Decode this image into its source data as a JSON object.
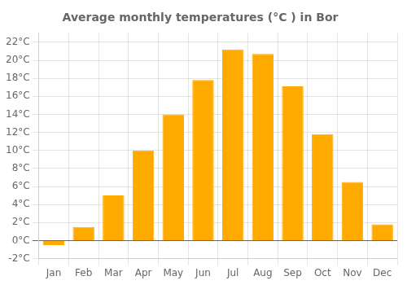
{
  "chart_data": {
    "type": "bar",
    "title": "Average monthly temperatures (°C ) in Bor",
    "categories": [
      "Jan",
      "Feb",
      "Mar",
      "Apr",
      "May",
      "Jun",
      "Jul",
      "Aug",
      "Sep",
      "Oct",
      "Nov",
      "Dec"
    ],
    "values": [
      -0.5,
      1.5,
      5.0,
      10.0,
      14.0,
      17.8,
      21.2,
      20.7,
      17.1,
      11.8,
      6.5,
      1.8
    ],
    "color": "#FFAA00",
    "ylim": [
      -2,
      23
    ],
    "yticks": [
      {
        "value": -2,
        "label": "-2°C"
      },
      {
        "value": 0,
        "label": "0°C"
      },
      {
        "value": 2,
        "label": "2°C"
      },
      {
        "value": 4,
        "label": "4°C"
      },
      {
        "value": 6,
        "label": "6°C"
      },
      {
        "value": 8,
        "label": "8°C"
      },
      {
        "value": 10,
        "label": "10°C"
      },
      {
        "value": 12,
        "label": "12°C"
      },
      {
        "value": 14,
        "label": "14°C"
      },
      {
        "value": 16,
        "label": "16°C"
      },
      {
        "value": 18,
        "label": "18°C"
      },
      {
        "value": 20,
        "label": "20°C"
      },
      {
        "value": 22,
        "label": "22°C"
      }
    ],
    "grid": true
  }
}
